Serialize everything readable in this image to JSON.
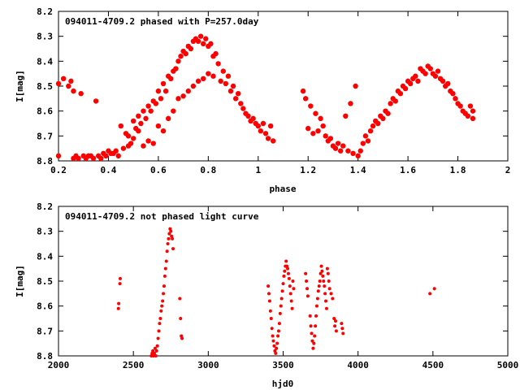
{
  "chart_data": [
    {
      "type": "scatter",
      "title": "094011-4709.2 phased with P=257.0day",
      "xlabel": "phase",
      "ylabel": "I[mag]",
      "xlim": [
        0.2,
        2.0
      ],
      "ylim": [
        8.8,
        8.2
      ],
      "y_inverted": true,
      "xticks": [
        "0.2",
        "0.4",
        "0.6",
        "0.8",
        "1",
        "1.2",
        "1.4",
        "1.6",
        "1.8",
        "2"
      ],
      "xtick_values": [
        0.2,
        0.4,
        0.6,
        0.8,
        1.0,
        1.2,
        1.4,
        1.6,
        1.8,
        2.0
      ],
      "yticks": [
        "8.2",
        "8.3",
        "8.4",
        "8.5",
        "8.6",
        "8.7",
        "8.8"
      ],
      "ytick_values": [
        8.2,
        8.3,
        8.4,
        8.5,
        8.6,
        8.7,
        8.8
      ],
      "marker_color": "#ff0000",
      "points": [
        [
          0.2,
          8.49
        ],
        [
          0.2,
          8.78
        ],
        [
          0.22,
          8.47
        ],
        [
          0.24,
          8.5
        ],
        [
          0.25,
          8.48
        ],
        [
          0.26,
          8.79
        ],
        [
          0.26,
          8.52
        ],
        [
          0.27,
          8.78
        ],
        [
          0.28,
          8.79
        ],
        [
          0.29,
          8.53
        ],
        [
          0.3,
          8.78
        ],
        [
          0.31,
          8.79
        ],
        [
          0.32,
          8.78
        ],
        [
          0.33,
          8.78
        ],
        [
          0.34,
          8.79
        ],
        [
          0.35,
          8.56
        ],
        [
          0.36,
          8.78
        ],
        [
          0.37,
          8.79
        ],
        [
          0.38,
          8.77
        ],
        [
          0.39,
          8.78
        ],
        [
          0.4,
          8.76
        ],
        [
          0.41,
          8.77
        ],
        [
          0.42,
          8.77
        ],
        [
          0.43,
          8.76
        ],
        [
          0.44,
          8.78
        ],
        [
          0.45,
          8.66
        ],
        [
          0.46,
          8.75
        ],
        [
          0.47,
          8.69
        ],
        [
          0.48,
          8.74
        ],
        [
          0.48,
          8.7
        ],
        [
          0.49,
          8.73
        ],
        [
          0.5,
          8.71
        ],
        [
          0.5,
          8.64
        ],
        [
          0.51,
          8.67
        ],
        [
          0.52,
          8.62
        ],
        [
          0.52,
          8.68
        ],
        [
          0.53,
          8.65
        ],
        [
          0.54,
          8.6
        ],
        [
          0.54,
          8.74
        ],
        [
          0.55,
          8.63
        ],
        [
          0.56,
          8.58
        ],
        [
          0.56,
          8.72
        ],
        [
          0.57,
          8.6
        ],
        [
          0.58,
          8.56
        ],
        [
          0.58,
          8.73
        ],
        [
          0.59,
          8.57
        ],
        [
          0.6,
          8.52
        ],
        [
          0.6,
          8.66
        ],
        [
          0.61,
          8.55
        ],
        [
          0.62,
          8.49
        ],
        [
          0.62,
          8.68
        ],
        [
          0.63,
          8.52
        ],
        [
          0.64,
          8.46
        ],
        [
          0.64,
          8.63
        ],
        [
          0.65,
          8.47
        ],
        [
          0.66,
          8.44
        ],
        [
          0.66,
          8.6
        ],
        [
          0.67,
          8.43
        ],
        [
          0.68,
          8.4
        ],
        [
          0.68,
          8.55
        ],
        [
          0.69,
          8.38
        ],
        [
          0.7,
          8.36
        ],
        [
          0.7,
          8.54
        ],
        [
          0.71,
          8.37
        ],
        [
          0.72,
          8.34
        ],
        [
          0.72,
          8.52
        ],
        [
          0.73,
          8.35
        ],
        [
          0.74,
          8.32
        ],
        [
          0.74,
          8.5
        ],
        [
          0.75,
          8.31
        ],
        [
          0.76,
          8.32
        ],
        [
          0.76,
          8.48
        ],
        [
          0.77,
          8.3
        ],
        [
          0.78,
          8.33
        ],
        [
          0.78,
          8.47
        ],
        [
          0.79,
          8.31
        ],
        [
          0.8,
          8.34
        ],
        [
          0.8,
          8.45
        ],
        [
          0.81,
          8.33
        ],
        [
          0.82,
          8.38
        ],
        [
          0.82,
          8.46
        ],
        [
          0.83,
          8.37
        ],
        [
          0.84,
          8.41
        ],
        [
          0.85,
          8.48
        ],
        [
          0.86,
          8.44
        ],
        [
          0.87,
          8.49
        ],
        [
          0.88,
          8.46
        ],
        [
          0.89,
          8.52
        ],
        [
          0.9,
          8.5
        ],
        [
          0.91,
          8.55
        ],
        [
          0.92,
          8.53
        ],
        [
          0.93,
          8.57
        ],
        [
          0.94,
          8.59
        ],
        [
          0.95,
          8.61
        ],
        [
          0.96,
          8.62
        ],
        [
          0.97,
          8.64
        ],
        [
          0.98,
          8.63
        ],
        [
          0.99,
          8.65
        ],
        [
          1.0,
          8.66
        ],
        [
          1.01,
          8.68
        ],
        [
          1.02,
          8.65
        ],
        [
          1.03,
          8.69
        ],
        [
          1.04,
          8.71
        ],
        [
          1.05,
          8.66
        ],
        [
          1.06,
          8.72
        ],
        [
          1.18,
          8.52
        ],
        [
          1.19,
          8.55
        ],
        [
          1.2,
          8.67
        ],
        [
          1.21,
          8.58
        ],
        [
          1.22,
          8.69
        ],
        [
          1.23,
          8.61
        ],
        [
          1.24,
          8.68
        ],
        [
          1.25,
          8.63
        ],
        [
          1.26,
          8.66
        ],
        [
          1.27,
          8.7
        ],
        [
          1.28,
          8.72
        ],
        [
          1.29,
          8.71
        ],
        [
          1.3,
          8.74
        ],
        [
          1.31,
          8.75
        ],
        [
          1.32,
          8.73
        ],
        [
          1.33,
          8.76
        ],
        [
          1.34,
          8.74
        ],
        [
          1.35,
          8.62
        ],
        [
          1.36,
          8.76
        ],
        [
          1.37,
          8.57
        ],
        [
          1.38,
          8.77
        ],
        [
          1.39,
          8.5
        ],
        [
          1.4,
          8.78
        ],
        [
          1.41,
          8.76
        ],
        [
          1.42,
          8.73
        ],
        [
          1.43,
          8.7
        ],
        [
          1.44,
          8.72
        ],
        [
          1.45,
          8.68
        ],
        [
          1.46,
          8.66
        ],
        [
          1.47,
          8.64
        ],
        [
          1.48,
          8.65
        ],
        [
          1.49,
          8.62
        ],
        [
          1.5,
          8.63
        ],
        [
          1.51,
          8.6
        ],
        [
          1.52,
          8.61
        ],
        [
          1.53,
          8.57
        ],
        [
          1.54,
          8.55
        ],
        [
          1.55,
          8.56
        ],
        [
          1.56,
          8.52
        ],
        [
          1.57,
          8.53
        ],
        [
          1.58,
          8.5
        ],
        [
          1.59,
          8.51
        ],
        [
          1.6,
          8.48
        ],
        [
          1.61,
          8.49
        ],
        [
          1.62,
          8.47
        ],
        [
          1.63,
          8.46
        ],
        [
          1.64,
          8.48
        ],
        [
          1.65,
          8.43
        ],
        [
          1.66,
          8.44
        ],
        [
          1.67,
          8.45
        ],
        [
          1.68,
          8.42
        ],
        [
          1.69,
          8.43
        ],
        [
          1.7,
          8.45
        ],
        [
          1.71,
          8.46
        ],
        [
          1.72,
          8.44
        ],
        [
          1.73,
          8.47
        ],
        [
          1.74,
          8.48
        ],
        [
          1.75,
          8.5
        ],
        [
          1.76,
          8.49
        ],
        [
          1.77,
          8.52
        ],
        [
          1.78,
          8.53
        ],
        [
          1.79,
          8.55
        ],
        [
          1.8,
          8.57
        ],
        [
          1.81,
          8.58
        ],
        [
          1.82,
          8.6
        ],
        [
          1.83,
          8.61
        ],
        [
          1.84,
          8.62
        ],
        [
          1.85,
          8.58
        ],
        [
          1.86,
          8.6
        ],
        [
          1.86,
          8.63
        ]
      ]
    },
    {
      "type": "scatter",
      "title": "094011-4709.2 not phased light curve",
      "xlabel": "hjd0",
      "ylabel": "I[mag]",
      "xlim": [
        2000,
        5000
      ],
      "ylim": [
        8.8,
        8.2
      ],
      "y_inverted": true,
      "xticks": [
        "2000",
        "2500",
        "3000",
        "3500",
        "4000",
        "4500",
        "5000"
      ],
      "xtick_values": [
        2000,
        2500,
        3000,
        3500,
        4000,
        4500,
        5000
      ],
      "yticks": [
        "8.2",
        "8.3",
        "8.4",
        "8.5",
        "8.6",
        "8.7",
        "8.8"
      ],
      "ytick_values": [
        8.2,
        8.3,
        8.4,
        8.5,
        8.6,
        8.7,
        8.8
      ],
      "marker_color": "#ff0000",
      "points": [
        [
          2400,
          8.61
        ],
        [
          2402,
          8.59
        ],
        [
          2410,
          8.51
        ],
        [
          2412,
          8.49
        ],
        [
          2620,
          8.8
        ],
        [
          2625,
          8.79
        ],
        [
          2630,
          8.78
        ],
        [
          2635,
          8.8
        ],
        [
          2640,
          8.79
        ],
        [
          2645,
          8.77
        ],
        [
          2650,
          8.8
        ],
        [
          2655,
          8.78
        ],
        [
          2660,
          8.76
        ],
        [
          2665,
          8.73
        ],
        [
          2670,
          8.7
        ],
        [
          2675,
          8.67
        ],
        [
          2680,
          8.65
        ],
        [
          2685,
          8.62
        ],
        [
          2690,
          8.6
        ],
        [
          2695,
          8.58
        ],
        [
          2700,
          8.55
        ],
        [
          2705,
          8.52
        ],
        [
          2710,
          8.48
        ],
        [
          2715,
          8.45
        ],
        [
          2720,
          8.42
        ],
        [
          2725,
          8.38
        ],
        [
          2730,
          8.35
        ],
        [
          2735,
          8.33
        ],
        [
          2740,
          8.31
        ],
        [
          2745,
          8.29
        ],
        [
          2750,
          8.3
        ],
        [
          2755,
          8.32
        ],
        [
          2760,
          8.33
        ],
        [
          2765,
          8.37
        ],
        [
          2810,
          8.57
        ],
        [
          2815,
          8.65
        ],
        [
          2820,
          8.72
        ],
        [
          2825,
          8.73
        ],
        [
          3400,
          8.52
        ],
        [
          3405,
          8.55
        ],
        [
          3410,
          8.58
        ],
        [
          3415,
          8.62
        ],
        [
          3420,
          8.65
        ],
        [
          3425,
          8.69
        ],
        [
          3430,
          8.72
        ],
        [
          3435,
          8.74
        ],
        [
          3440,
          8.76
        ],
        [
          3445,
          8.78
        ],
        [
          3450,
          8.79
        ],
        [
          3455,
          8.77
        ],
        [
          3460,
          8.75
        ],
        [
          3465,
          8.72
        ],
        [
          3470,
          8.7
        ],
        [
          3475,
          8.67
        ],
        [
          3480,
          8.63
        ],
        [
          3485,
          8.6
        ],
        [
          3490,
          8.57
        ],
        [
          3495,
          8.54
        ],
        [
          3500,
          8.51
        ],
        [
          3505,
          8.48
        ],
        [
          3510,
          8.46
        ],
        [
          3515,
          8.44
        ],
        [
          3520,
          8.42
        ],
        [
          3525,
          8.44
        ],
        [
          3530,
          8.45
        ],
        [
          3535,
          8.47
        ],
        [
          3540,
          8.49
        ],
        [
          3545,
          8.52
        ],
        [
          3550,
          8.55
        ],
        [
          3555,
          8.58
        ],
        [
          3560,
          8.61
        ],
        [
          3565,
          8.5
        ],
        [
          3570,
          8.53
        ],
        [
          3650,
          8.47
        ],
        [
          3655,
          8.5
        ],
        [
          3660,
          8.53
        ],
        [
          3665,
          8.56
        ],
        [
          3680,
          8.64
        ],
        [
          3685,
          8.68
        ],
        [
          3690,
          8.71
        ],
        [
          3695,
          8.74
        ],
        [
          3700,
          8.77
        ],
        [
          3705,
          8.75
        ],
        [
          3710,
          8.72
        ],
        [
          3715,
          8.68
        ],
        [
          3720,
          8.64
        ],
        [
          3725,
          8.6
        ],
        [
          3730,
          8.57
        ],
        [
          3735,
          8.54
        ],
        [
          3740,
          8.52
        ],
        [
          3745,
          8.5
        ],
        [
          3750,
          8.47
        ],
        [
          3755,
          8.44
        ],
        [
          3760,
          8.46
        ],
        [
          3765,
          8.48
        ],
        [
          3770,
          8.5
        ],
        [
          3775,
          8.52
        ],
        [
          3780,
          8.55
        ],
        [
          3785,
          8.58
        ],
        [
          3790,
          8.61
        ],
        [
          3795,
          8.45
        ],
        [
          3800,
          8.47
        ],
        [
          3805,
          8.5
        ],
        [
          3810,
          8.53
        ],
        [
          3820,
          8.55
        ],
        [
          3830,
          8.57
        ],
        [
          3840,
          8.65
        ],
        [
          3845,
          8.68
        ],
        [
          3850,
          8.66
        ],
        [
          3855,
          8.7
        ],
        [
          3890,
          8.67
        ],
        [
          3895,
          8.69
        ],
        [
          3900,
          8.71
        ],
        [
          4480,
          8.55
        ],
        [
          4510,
          8.53
        ]
      ]
    }
  ]
}
